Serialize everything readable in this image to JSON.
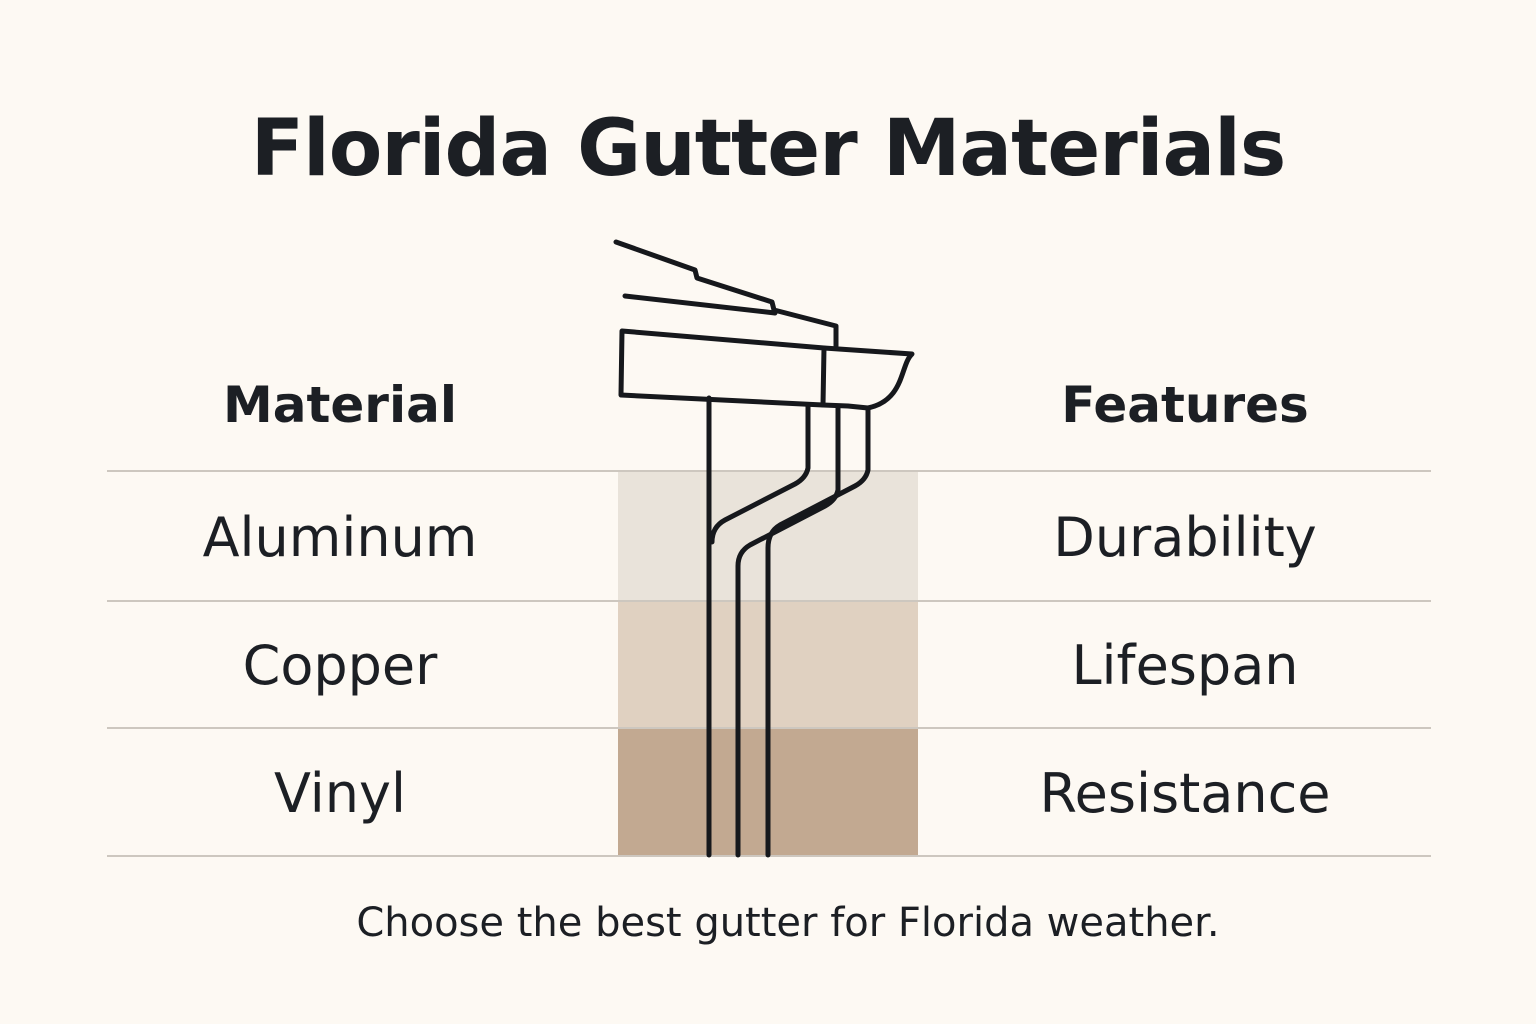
{
  "title": "Florida Gutter Materials",
  "headers": {
    "material": "Material",
    "features": "Features"
  },
  "rows": [
    {
      "material": "Aluminum",
      "feature": "Durability"
    },
    {
      "material": "Copper",
      "feature": "Lifespan"
    },
    {
      "material": "Vinyl",
      "feature": "Resistance"
    }
  ],
  "footer": "Choose the best gutter for Florida weather.",
  "colors": {
    "background": "#fdf9f3",
    "band_1": "#e9e3da",
    "band_2": "#e0d1c1",
    "band_3": "#c2a991",
    "ink": "#1c1f24"
  },
  "illustration": "gutter-downspout-icon"
}
